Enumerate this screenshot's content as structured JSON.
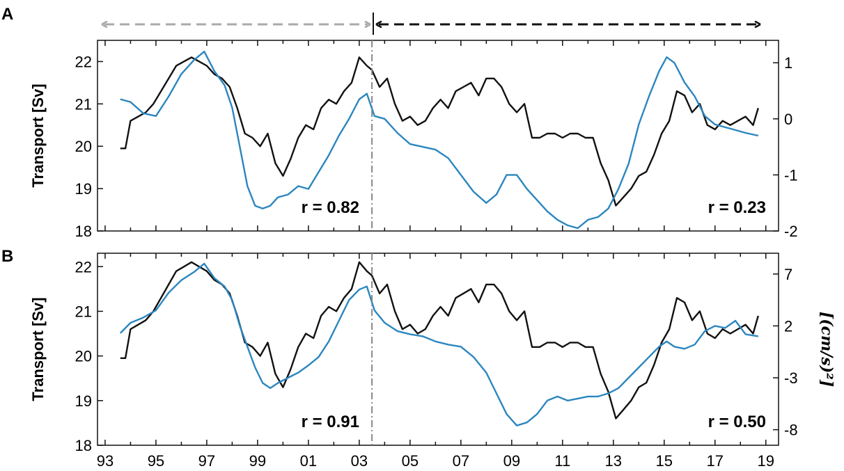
{
  "chart_data": [
    {
      "type": "line",
      "panel_label": "A",
      "ylabel": "Transport [Sv]",
      "ylim": [
        18,
        22.5
      ],
      "yticks": [
        "18",
        "19",
        "20",
        "21",
        "22"
      ],
      "y2lim": [
        -2,
        1.4
      ],
      "y2ticks": [
        "-2",
        "-1",
        "0",
        "1"
      ],
      "xlim": [
        1992.7,
        2019.5
      ],
      "xticks": [
        "93",
        "95",
        "97",
        "99",
        "01",
        "03",
        "05",
        "07",
        "09",
        "11",
        "13",
        "15",
        "17",
        "19"
      ],
      "grid": false,
      "divider_x": 2003.5,
      "correlations": [
        "r = 0.82",
        "r = 0.23"
      ],
      "colors": {
        "transport": "#111111",
        "index": "#2b86bf"
      },
      "series": [
        {
          "axis": "left",
          "x": [
            1993.6,
            1993.8,
            1994.0,
            1994.3,
            1994.6,
            1994.9,
            1995.2,
            1995.5,
            1995.8,
            1996.1,
            1996.4,
            1996.7,
            1997.0,
            1997.3,
            1997.6,
            1997.9,
            1998.2,
            1998.5,
            1998.8,
            1999.1,
            1999.4,
            1999.7,
            2000.0,
            2000.3,
            2000.6,
            2000.9,
            2001.2,
            2001.5,
            2001.8,
            2002.1,
            2002.4,
            2002.7,
            2003.0,
            2003.3,
            2003.5,
            2003.8,
            2004.1,
            2004.4,
            2004.7,
            2005.0,
            2005.3,
            2005.6,
            2005.9,
            2006.2,
            2006.5,
            2006.8,
            2007.1,
            2007.4,
            2007.7,
            2008.0,
            2008.3,
            2008.6,
            2008.9,
            2009.2,
            2009.5,
            2009.8,
            2010.1,
            2010.4,
            2010.7,
            2011.0,
            2011.3,
            2011.6,
            2011.9,
            2012.2,
            2012.5,
            2012.8,
            2013.1,
            2013.4,
            2013.7,
            2014.0,
            2014.3,
            2014.6,
            2014.9,
            2015.2,
            2015.5,
            2015.8,
            2016.1,
            2016.4,
            2016.7,
            2017.0,
            2017.3,
            2017.6,
            2017.9,
            2018.2,
            2018.5,
            2018.7
          ],
          "y": [
            19.95,
            19.95,
            20.6,
            20.7,
            20.8,
            21.0,
            21.3,
            21.6,
            21.9,
            22.0,
            22.1,
            22.0,
            21.9,
            21.7,
            21.6,
            21.4,
            20.9,
            20.3,
            20.2,
            20.0,
            20.3,
            19.6,
            19.3,
            19.7,
            20.2,
            20.5,
            20.4,
            20.9,
            21.1,
            21.0,
            21.3,
            21.5,
            22.1,
            21.9,
            21.8,
            21.4,
            21.6,
            21.0,
            20.6,
            20.7,
            20.5,
            20.6,
            20.9,
            21.1,
            20.9,
            21.3,
            21.4,
            21.5,
            21.2,
            21.6,
            21.6,
            21.4,
            21.0,
            20.8,
            21.0,
            20.2,
            20.2,
            20.3,
            20.3,
            20.2,
            20.3,
            20.3,
            20.2,
            20.2,
            19.6,
            19.2,
            18.6,
            18.8,
            19.0,
            19.3,
            19.4,
            19.8,
            20.3,
            20.6,
            21.3,
            21.2,
            20.8,
            21.0,
            20.5,
            20.4,
            20.6,
            20.5,
            20.6,
            20.7,
            20.5,
            20.9
          ]
        },
        {
          "axis": "right",
          "x": [
            1993.6,
            1994.0,
            1994.5,
            1995.0,
            1995.5,
            1996.0,
            1996.5,
            1996.9,
            1997.3,
            1997.7,
            1998.0,
            1998.3,
            1998.6,
            1998.9,
            1999.2,
            1999.5,
            1999.8,
            2000.2,
            2000.6,
            2001.0,
            2001.4,
            2001.8,
            2002.2,
            2002.6,
            2003.0,
            2003.3,
            2003.6,
            2004.0,
            2004.5,
            2005.0,
            2005.5,
            2006.0,
            2006.5,
            2007.0,
            2007.5,
            2008.0,
            2008.4,
            2008.8,
            2009.2,
            2009.6,
            2010.0,
            2010.4,
            2010.8,
            2011.2,
            2011.6,
            2012.0,
            2012.4,
            2012.8,
            2013.2,
            2013.6,
            2014.0,
            2014.4,
            2014.8,
            2015.1,
            2015.4,
            2015.8,
            2016.2,
            2016.6,
            2017.0,
            2017.4,
            2017.8,
            2018.2,
            2018.7
          ],
          "y": [
            0.35,
            0.3,
            0.1,
            0.05,
            0.4,
            0.8,
            1.05,
            1.2,
            0.85,
            0.6,
            0.2,
            -0.5,
            -1.2,
            -1.55,
            -1.6,
            -1.55,
            -1.4,
            -1.35,
            -1.2,
            -1.25,
            -0.95,
            -0.65,
            -0.3,
            0.0,
            0.35,
            0.45,
            0.05,
            0.0,
            -0.25,
            -0.45,
            -0.5,
            -0.55,
            -0.7,
            -1.0,
            -1.3,
            -1.5,
            -1.35,
            -1.0,
            -1.0,
            -1.25,
            -1.45,
            -1.65,
            -1.8,
            -1.9,
            -1.95,
            -1.8,
            -1.75,
            -1.6,
            -1.25,
            -0.8,
            -0.1,
            0.4,
            0.85,
            1.1,
            1.0,
            0.65,
            0.4,
            0.05,
            -0.1,
            -0.15,
            -0.2,
            -0.25,
            -0.3
          ]
        }
      ]
    },
    {
      "type": "line",
      "panel_label": "B",
      "ylabel": "Transport [Sv]",
      "ylim": [
        18,
        22.3
      ],
      "yticks": [
        "18",
        "19",
        "20",
        "21",
        "22"
      ],
      "y2label": "[(cm/s)²]",
      "y2lim": [
        -9.5,
        9
      ],
      "y2ticks": [
        "-8",
        "-3",
        "2",
        "7"
      ],
      "xlim": [
        1992.7,
        2019.5
      ],
      "xticks": [
        "93",
        "95",
        "97",
        "99",
        "01",
        "03",
        "05",
        "07",
        "09",
        "11",
        "13",
        "15",
        "17",
        "19"
      ],
      "grid": false,
      "divider_x": 2003.5,
      "correlations": [
        "r = 0.91",
        "r = 0.50"
      ],
      "colors": {
        "transport": "#111111",
        "index": "#2b86bf"
      },
      "series": [
        {
          "axis": "left",
          "x": [
            1993.6,
            1993.8,
            1994.0,
            1994.3,
            1994.6,
            1994.9,
            1995.2,
            1995.5,
            1995.8,
            1996.1,
            1996.4,
            1996.7,
            1997.0,
            1997.3,
            1997.6,
            1997.9,
            1998.2,
            1998.5,
            1998.8,
            1999.1,
            1999.4,
            1999.7,
            2000.0,
            2000.3,
            2000.6,
            2000.9,
            2001.2,
            2001.5,
            2001.8,
            2002.1,
            2002.4,
            2002.7,
            2003.0,
            2003.3,
            2003.5,
            2003.8,
            2004.1,
            2004.4,
            2004.7,
            2005.0,
            2005.3,
            2005.6,
            2005.9,
            2006.2,
            2006.5,
            2006.8,
            2007.1,
            2007.4,
            2007.7,
            2008.0,
            2008.3,
            2008.6,
            2008.9,
            2009.2,
            2009.5,
            2009.8,
            2010.1,
            2010.4,
            2010.7,
            2011.0,
            2011.3,
            2011.6,
            2011.9,
            2012.2,
            2012.5,
            2012.8,
            2013.1,
            2013.4,
            2013.7,
            2014.0,
            2014.3,
            2014.6,
            2014.9,
            2015.2,
            2015.5,
            2015.8,
            2016.1,
            2016.4,
            2016.7,
            2017.0,
            2017.3,
            2017.6,
            2017.9,
            2018.2,
            2018.5,
            2018.7
          ],
          "y": [
            19.95,
            19.95,
            20.6,
            20.7,
            20.8,
            21.0,
            21.3,
            21.6,
            21.9,
            22.0,
            22.1,
            22.0,
            21.9,
            21.7,
            21.6,
            21.4,
            20.9,
            20.3,
            20.2,
            20.0,
            20.3,
            19.6,
            19.3,
            19.7,
            20.2,
            20.5,
            20.4,
            20.9,
            21.1,
            21.0,
            21.3,
            21.5,
            22.1,
            21.9,
            21.8,
            21.4,
            21.6,
            21.0,
            20.6,
            20.7,
            20.5,
            20.6,
            20.9,
            21.1,
            20.9,
            21.3,
            21.4,
            21.5,
            21.2,
            21.6,
            21.6,
            21.4,
            21.0,
            20.8,
            21.0,
            20.2,
            20.2,
            20.3,
            20.3,
            20.2,
            20.3,
            20.3,
            20.2,
            20.2,
            19.6,
            19.2,
            18.6,
            18.8,
            19.0,
            19.3,
            19.4,
            19.8,
            20.3,
            20.6,
            21.3,
            21.2,
            20.8,
            21.0,
            20.5,
            20.4,
            20.6,
            20.5,
            20.6,
            20.7,
            20.5,
            20.9
          ]
        },
        {
          "axis": "right",
          "x": [
            1993.6,
            1994.0,
            1994.5,
            1995.0,
            1995.5,
            1996.0,
            1996.5,
            1996.9,
            1997.3,
            1997.7,
            1998.0,
            1998.3,
            1998.6,
            1998.9,
            1999.2,
            1999.5,
            1999.8,
            2000.2,
            2000.6,
            2001.0,
            2001.4,
            2001.8,
            2002.2,
            2002.6,
            2003.0,
            2003.3,
            2003.6,
            2004.0,
            2004.5,
            2005.0,
            2005.5,
            2006.0,
            2006.5,
            2007.0,
            2007.5,
            2008.0,
            2008.4,
            2008.8,
            2009.2,
            2009.6,
            2010.0,
            2010.4,
            2010.8,
            2011.2,
            2011.6,
            2012.0,
            2012.4,
            2012.8,
            2013.2,
            2013.6,
            2014.0,
            2014.4,
            2014.8,
            2015.1,
            2015.4,
            2015.8,
            2016.2,
            2016.6,
            2017.0,
            2017.4,
            2017.8,
            2018.2,
            2018.7
          ],
          "y": [
            1.3,
            2.3,
            2.8,
            3.5,
            5.2,
            6.4,
            7.2,
            8.0,
            6.6,
            5.8,
            4.5,
            2.0,
            0.0,
            -2.0,
            -3.5,
            -4.0,
            -3.5,
            -3.0,
            -2.5,
            -1.8,
            -1.0,
            0.5,
            2.5,
            4.5,
            5.5,
            5.8,
            3.5,
            2.3,
            1.5,
            1.2,
            1.0,
            0.5,
            0.2,
            0.0,
            -1.0,
            -2.5,
            -4.5,
            -6.5,
            -7.6,
            -7.3,
            -6.5,
            -5.2,
            -4.8,
            -5.2,
            -5.0,
            -4.8,
            -4.8,
            -4.5,
            -4.0,
            -3.0,
            -2.0,
            -1.0,
            0.0,
            0.5,
            0.0,
            -0.2,
            0.2,
            1.5,
            2.0,
            1.8,
            2.5,
            1.2,
            1.0
          ]
        }
      ]
    }
  ]
}
